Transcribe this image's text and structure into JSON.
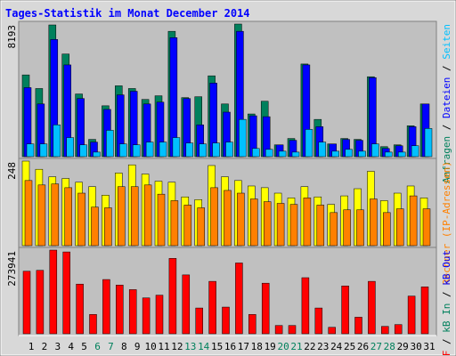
{
  "title": "Tages-Statistik im Monat December 2014",
  "legend_separator": " / ",
  "chart_data": [
    {
      "type": "bar",
      "categories": [
        "1",
        "2",
        "3",
        "4",
        "5",
        "6",
        "7",
        "8",
        "9",
        "10",
        "11",
        "12",
        "13",
        "14",
        "15",
        "16",
        "17",
        "18",
        "19",
        "20",
        "21",
        "22",
        "23",
        "24",
        "25",
        "26",
        "27",
        "28",
        "29",
        "30",
        "31"
      ],
      "category_colors": [
        "#000000",
        "#000000",
        "#000000",
        "#000000",
        "#000000",
        "#00805c",
        "#00805c",
        "#000000",
        "#000000",
        "#000000",
        "#000000",
        "#000000",
        "#00805c",
        "#00805c",
        "#000000",
        "#000000",
        "#000000",
        "#000000",
        "#000000",
        "#00805c",
        "#00805c",
        "#000000",
        "#000000",
        "#000000",
        "#000000",
        "#000000",
        "#00805c",
        "#00805c",
        "#000000",
        "#000000",
        "#000000"
      ],
      "ylim": [
        0,
        8193
      ],
      "yticks": [
        8193
      ],
      "series": [
        {
          "name": "Anfragen",
          "color": "#00805c",
          "values": [
            5050,
            4209,
            8137,
            6341,
            3872,
            1066,
            3142,
            4377,
            4209,
            3535,
            3760,
            7744,
            3647,
            3703,
            4994,
            3255,
            8193,
            2637,
            3423,
            729,
            1122,
            5724,
            2301,
            785,
            1122,
            1066,
            4938,
            617,
            729,
            1908,
            3255
          ]
        },
        {
          "name": "Dateien",
          "color": "#0000ff",
          "values": [
            4265,
            3255,
            7239,
            5668,
            3591,
            898,
            2918,
            3816,
            4040,
            3255,
            3367,
            7351,
            3591,
            1964,
            4545,
            2750,
            7744,
            2525,
            2469,
            729,
            1010,
            5668,
            1852,
            785,
            1066,
            1010,
            4882,
            505,
            673,
            1852,
            3255
          ]
        },
        {
          "name": "Seiten",
          "color": "#00c0ff",
          "values": [
            785,
            785,
            1964,
            1178,
            729,
            281,
            1627,
            785,
            729,
            898,
            898,
            1178,
            842,
            785,
            842,
            898,
            2301,
            505,
            449,
            337,
            281,
            1683,
            898,
            337,
            449,
            337,
            785,
            281,
            281,
            673,
            1740
          ]
        }
      ]
    },
    {
      "type": "bar",
      "ylim": [
        0,
        248
      ],
      "yticks": [
        248
      ],
      "series": [
        {
          "color": "#ffff00",
          "values": [
            248,
            224,
            202,
            197,
            186,
            173,
            148,
            213,
            237,
            210,
            189,
            186,
            143,
            135,
            235,
            202,
            191,
            175,
            170,
            154,
            140,
            173,
            143,
            121,
            146,
            167,
            218,
            132,
            154,
            175,
            140
          ]
        },
        {
          "name": "Rechner (IP-Adressen)",
          "color": "#ff8000",
          "values": [
            191,
            178,
            181,
            170,
            154,
            113,
            111,
            173,
            173,
            178,
            151,
            132,
            119,
            111,
            170,
            162,
            154,
            137,
            129,
            124,
            121,
            140,
            119,
            97,
            105,
            105,
            137,
            97,
            108,
            146,
            108
          ]
        }
      ]
    },
    {
      "type": "bar",
      "ylim": [
        0,
        273941
      ],
      "yticks": [
        273941
      ],
      "series": [
        {
          "name": "kB F",
          "color": "#ff0000",
          "values": [
            204700,
            207700,
            273941,
            267900,
            162600,
            63200,
            177600,
            159500,
            144500,
            117400,
            126400,
            246800,
            192700,
            84300,
            171600,
            87300,
            231800,
            63200,
            165600,
            27100,
            27100,
            183600,
            84300,
            21100,
            156500,
            54200,
            171600,
            24100,
            30100,
            123400,
            153500
          ]
        },
        {
          "name": "kB In",
          "color": "#00805c"
        },
        {
          "name": "kB Out",
          "color": "#0000ff"
        }
      ]
    }
  ]
}
